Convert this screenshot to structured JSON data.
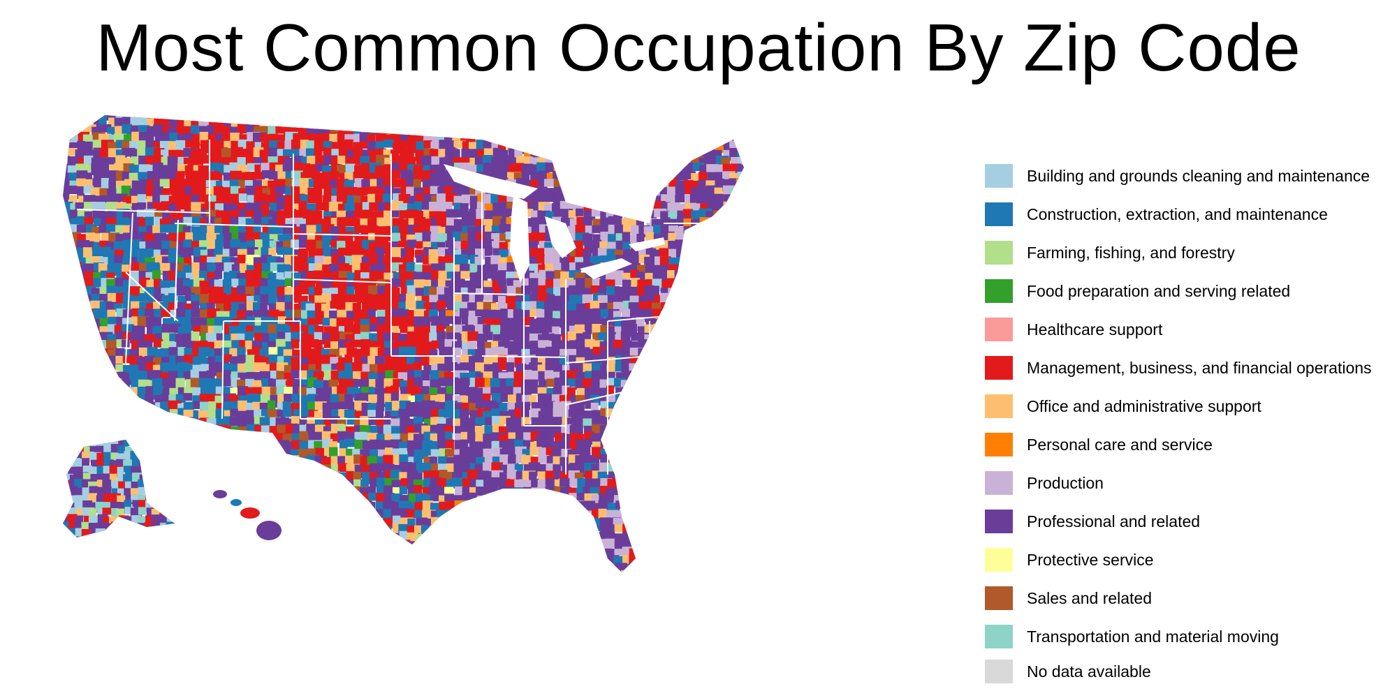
{
  "title": "Most Common Occupation By Zip Code",
  "legend": [
    {
      "label": "Building and grounds cleaning and maintenance",
      "color": "#a6cee3"
    },
    {
      "label": "Construction, extraction, and maintenance",
      "color": "#1f78b4"
    },
    {
      "label": "Farming, fishing, and forestry",
      "color": "#b2df8a"
    },
    {
      "label": "Food preparation and serving related",
      "color": "#33a02c"
    },
    {
      "label": "Healthcare support",
      "color": "#fb9a99"
    },
    {
      "label": "Management, business, and financial operations",
      "color": "#e31a1c"
    },
    {
      "label": "Office and administrative support",
      "color": "#fdbf6f"
    },
    {
      "label": "Personal care and service",
      "color": "#ff7f00"
    },
    {
      "label": "Production",
      "color": "#cab2d6"
    },
    {
      "label": "Professional and related",
      "color": "#6a3d9a"
    },
    {
      "label": "Protective service",
      "color": "#ffff99"
    },
    {
      "label": "Sales and related",
      "color": "#b15928"
    },
    {
      "label": "Transportation and material moving",
      "color": "#8dd3c7"
    },
    {
      "label": "No data available",
      "color": "#d9d9d9"
    }
  ],
  "map": {
    "dominant_categories": {
      "west": "Construction, extraction, and maintenance",
      "northern-plains": "Management, business, and financial operations",
      "midwest-east-south": "Professional and related"
    }
  }
}
